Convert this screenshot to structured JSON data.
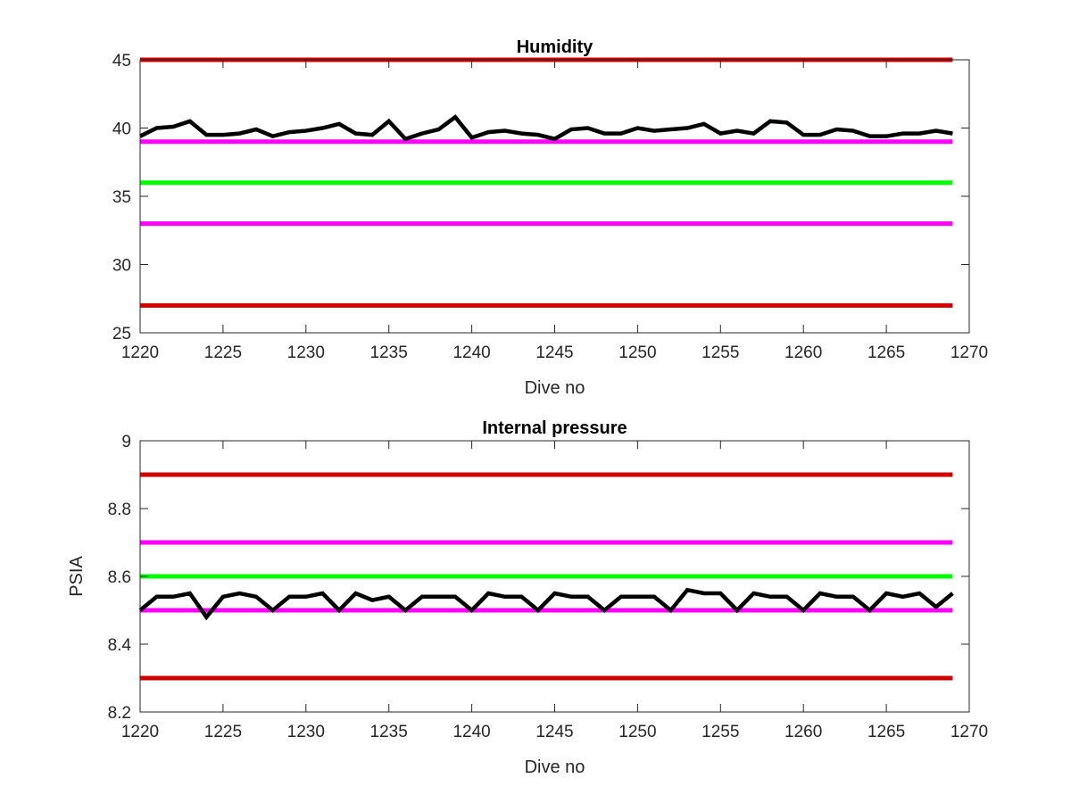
{
  "chart_data": [
    {
      "type": "line",
      "title": "Humidity",
      "xlabel": "Dive no",
      "ylabel": "",
      "xlim": [
        1220,
        1270
      ],
      "ylim": [
        25,
        45
      ],
      "xticks": [
        1220,
        1225,
        1230,
        1235,
        1240,
        1245,
        1250,
        1255,
        1260,
        1265,
        1270
      ],
      "yticks": [
        25,
        30,
        35,
        40,
        45
      ],
      "grid": false,
      "x": [
        1220,
        1221,
        1222,
        1223,
        1224,
        1225,
        1226,
        1227,
        1228,
        1229,
        1230,
        1231,
        1232,
        1233,
        1234,
        1235,
        1236,
        1237,
        1238,
        1239,
        1240,
        1241,
        1242,
        1243,
        1244,
        1245,
        1246,
        1247,
        1248,
        1249,
        1250,
        1251,
        1252,
        1253,
        1254,
        1255,
        1256,
        1257,
        1258,
        1259,
        1260,
        1261,
        1262,
        1263,
        1264,
        1265,
        1266,
        1267,
        1268,
        1269
      ],
      "series": [
        {
          "values": [
            39.4,
            40.0,
            40.1,
            40.5,
            39.5,
            39.5,
            39.6,
            39.9,
            39.4,
            39.7,
            39.8,
            40.0,
            40.3,
            39.6,
            39.5,
            40.5,
            39.2,
            39.6,
            39.9,
            40.8,
            39.3,
            39.7,
            39.8,
            39.6,
            39.5,
            39.2,
            39.9,
            40.0,
            39.6,
            39.6,
            40.0,
            39.8,
            39.9,
            40.0,
            40.3,
            39.6,
            39.8,
            39.6,
            40.5,
            40.4,
            39.5,
            39.5,
            39.9,
            39.8,
            39.4,
            39.4,
            39.6,
            39.6,
            39.8,
            39.6
          ],
          "color": "#000000"
        }
      ],
      "reference_lines": [
        {
          "y": 45,
          "color": "#d00000"
        },
        {
          "y": 39,
          "color": "#ff00ff"
        },
        {
          "y": 36,
          "color": "#00ff00"
        },
        {
          "y": 33,
          "color": "#ff00ff"
        },
        {
          "y": 27,
          "color": "#d00000"
        }
      ]
    },
    {
      "type": "line",
      "title": "Internal pressure",
      "xlabel": "Dive no",
      "ylabel": "PSIA",
      "xlim": [
        1220,
        1270
      ],
      "ylim": [
        8.2,
        9
      ],
      "xticks": [
        1220,
        1225,
        1230,
        1235,
        1240,
        1245,
        1250,
        1255,
        1260,
        1265,
        1270
      ],
      "yticks": [
        8.2,
        8.4,
        8.6,
        8.8,
        9
      ],
      "grid": false,
      "x": [
        1220,
        1221,
        1222,
        1223,
        1224,
        1225,
        1226,
        1227,
        1228,
        1229,
        1230,
        1231,
        1232,
        1233,
        1234,
        1235,
        1236,
        1237,
        1238,
        1239,
        1240,
        1241,
        1242,
        1243,
        1244,
        1245,
        1246,
        1247,
        1248,
        1249,
        1250,
        1251,
        1252,
        1253,
        1254,
        1255,
        1256,
        1257,
        1258,
        1259,
        1260,
        1261,
        1262,
        1263,
        1264,
        1265,
        1266,
        1267,
        1268,
        1269
      ],
      "series": [
        {
          "values": [
            8.5,
            8.54,
            8.54,
            8.55,
            8.48,
            8.54,
            8.55,
            8.54,
            8.5,
            8.54,
            8.54,
            8.55,
            8.5,
            8.55,
            8.53,
            8.54,
            8.5,
            8.54,
            8.54,
            8.54,
            8.5,
            8.55,
            8.54,
            8.54,
            8.5,
            8.55,
            8.54,
            8.54,
            8.5,
            8.54,
            8.54,
            8.54,
            8.5,
            8.56,
            8.55,
            8.55,
            8.5,
            8.55,
            8.54,
            8.54,
            8.5,
            8.55,
            8.54,
            8.54,
            8.5,
            8.55,
            8.54,
            8.55,
            8.51,
            8.55
          ],
          "color": "#000000"
        }
      ],
      "reference_lines": [
        {
          "y": 8.9,
          "color": "#d00000"
        },
        {
          "y": 8.7,
          "color": "#ff00ff"
        },
        {
          "y": 8.6,
          "color": "#00ff00"
        },
        {
          "y": 8.5,
          "color": "#ff00ff"
        },
        {
          "y": 8.3,
          "color": "#d00000"
        }
      ]
    }
  ]
}
